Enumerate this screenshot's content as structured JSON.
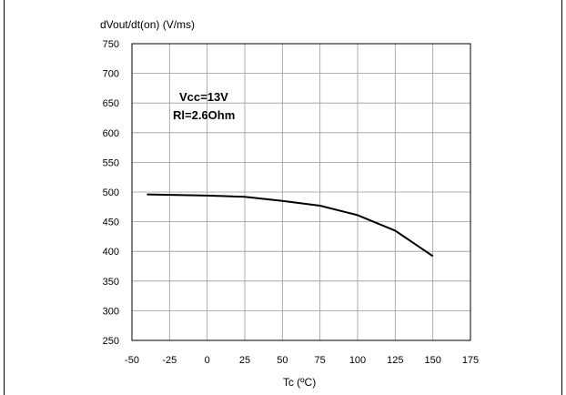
{
  "chart_data": {
    "type": "line",
    "title": "",
    "ylabel": "dVout/dt(on) (V/ms)",
    "xlabel": "Tc (ºC)",
    "xlim": [
      -50,
      175
    ],
    "ylim": [
      250,
      750
    ],
    "x_ticks": [
      -50,
      -25,
      0,
      25,
      50,
      75,
      100,
      125,
      150,
      175
    ],
    "y_ticks": [
      250,
      300,
      350,
      400,
      450,
      500,
      550,
      600,
      650,
      700,
      750
    ],
    "grid": true,
    "annotations": [
      "Vcc=13V",
      "Rl=2.6Ohm"
    ],
    "series": [
      {
        "x": [
          -40,
          0,
          25,
          50,
          75,
          100,
          125,
          150
        ],
        "y": [
          496,
          494,
          492,
          485,
          477,
          461,
          435,
          392
        ]
      }
    ]
  }
}
